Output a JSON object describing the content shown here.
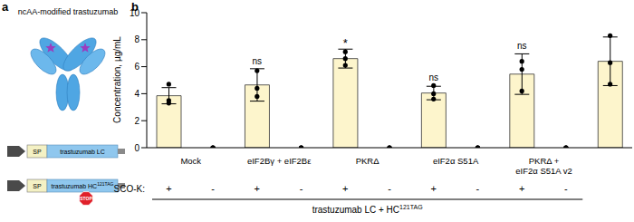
{
  "panel_a": {
    "label": "a",
    "title": "ncAA-modified trastuzumab",
    "constructs": [
      {
        "sp": "SP",
        "gene": "trastuzumab LC"
      },
      {
        "sp": "SP",
        "gene": "trastuzumab HC",
        "superscript": "121TAG",
        "stop": "STOP"
      }
    ]
  },
  "chart_data": {
    "type": "bar",
    "panel_label": "b",
    "y_label": "Concentration, µg/mL",
    "ylim": [
      0,
      10
    ],
    "yticks": [
      0,
      2,
      4,
      6,
      8,
      10
    ],
    "categories": [
      "+",
      "-",
      "+",
      "-",
      "+",
      "-",
      "+",
      "-",
      "+",
      "-",
      null
    ],
    "row_label": "SCO-K:",
    "groups": [
      "Mock",
      "eIF2Bγ + eIF2Bε",
      "PKRΔ",
      "eIF2α S51A",
      "PKRΔ +\neIF2α S51A v2",
      null
    ],
    "caption": {
      "text": "trastuzumab LC + HC",
      "superscript": "121TAG"
    },
    "values": [
      3.85,
      0,
      4.65,
      0,
      6.6,
      0,
      4.05,
      0,
      5.45,
      0,
      6.4
    ],
    "error": [
      0.6,
      0,
      1.2,
      0,
      0.7,
      0,
      0.5,
      0,
      1.5,
      0,
      1.8
    ],
    "points": [
      [
        4.7,
        3.5,
        3.3
      ],
      [
        0,
        0,
        0
      ],
      [
        5.7,
        4.4,
        3.8
      ],
      [
        0,
        0,
        0
      ],
      [
        7.1,
        6.6,
        6.1
      ],
      [
        0,
        0,
        0
      ],
      [
        4.6,
        4.0,
        3.6
      ],
      [
        0,
        0,
        0
      ],
      [
        6.4,
        5.8,
        4.2
      ],
      [
        0,
        0,
        0
      ],
      [
        8.3,
        6.3,
        4.7
      ]
    ],
    "annotations": [
      null,
      null,
      "ns",
      null,
      "*",
      null,
      "ns",
      null,
      "ns",
      null,
      null
    ],
    "color": "#fdf5cc"
  }
}
